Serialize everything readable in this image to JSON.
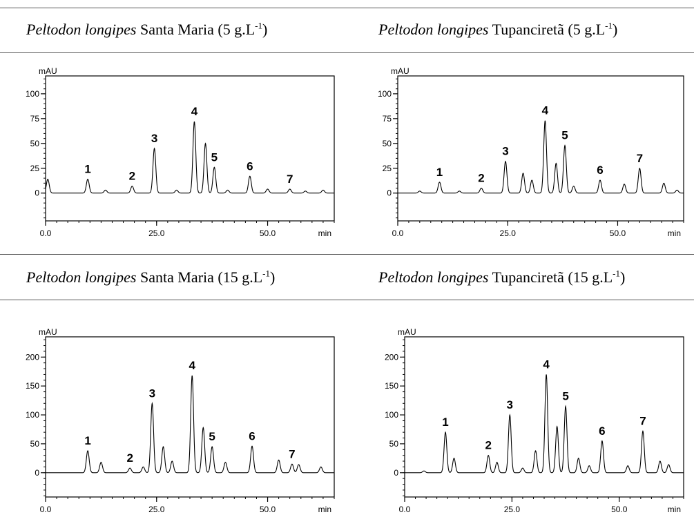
{
  "chart_data": [
    {
      "type": "line",
      "title": {
        "species": "Peltodon longipes",
        "place": "Santa Maria",
        "conc": "(5 g.L",
        "sup": "-1",
        "close": ")"
      },
      "xlabel": "min",
      "ylabel": "mAU",
      "xlim": [
        0,
        65
      ],
      "ylim": [
        -28,
        118
      ],
      "xticks": [
        {
          "value": 0,
          "label": "0.0"
        },
        {
          "value": 25,
          "label": "25.0"
        },
        {
          "value": 50,
          "label": "50.0"
        }
      ],
      "yticks": [
        {
          "value": 0,
          "label": "0"
        },
        {
          "value": 25,
          "label": "25"
        },
        {
          "value": 50,
          "label": "50"
        },
        {
          "value": 75,
          "label": "75"
        },
        {
          "value": 100,
          "label": "100"
        }
      ],
      "peaks": [
        {
          "label": "1",
          "x": 9.5,
          "y": 14
        },
        {
          "label": "2",
          "x": 19.5,
          "y": 7
        },
        {
          "label": "3",
          "x": 24.5,
          "y": 45
        },
        {
          "label": "4",
          "x": 33.5,
          "y": 72
        },
        {
          "label": "5",
          "x": 38.0,
          "y": 26
        },
        {
          "label": "6",
          "x": 46.0,
          "y": 17
        },
        {
          "label": "7",
          "x": 55.0,
          "y": 4
        }
      ],
      "minor_peaks": [
        {
          "x": 0.5,
          "y": 14
        },
        {
          "x": 13.5,
          "y": 3
        },
        {
          "x": 36.0,
          "y": 50
        },
        {
          "x": 29.5,
          "y": 3
        },
        {
          "x": 41.0,
          "y": 3
        },
        {
          "x": 50.0,
          "y": 4
        },
        {
          "x": 58.5,
          "y": 2
        },
        {
          "x": 62.5,
          "y": 3
        }
      ]
    },
    {
      "type": "line",
      "title": {
        "species": "Peltodon longipes",
        "place": "Tupanciretã",
        "conc": "(5 g.L",
        "sup": "-1",
        "close": ")"
      },
      "xlabel": "min",
      "ylabel": "mAU",
      "xlim": [
        0,
        65
      ],
      "ylim": [
        -28,
        118
      ],
      "xticks": [
        {
          "value": 0,
          "label": "0.0"
        },
        {
          "value": 25,
          "label": "25.0"
        },
        {
          "value": 50,
          "label": "50.0"
        }
      ],
      "yticks": [
        {
          "value": 0,
          "label": "0"
        },
        {
          "value": 25,
          "label": "25"
        },
        {
          "value": 50,
          "label": "50"
        },
        {
          "value": 75,
          "label": "75"
        },
        {
          "value": 100,
          "label": "100"
        }
      ],
      "peaks": [
        {
          "label": "1",
          "x": 9.5,
          "y": 11
        },
        {
          "label": "2",
          "x": 19.0,
          "y": 5
        },
        {
          "label": "3",
          "x": 24.5,
          "y": 32
        },
        {
          "label": "4",
          "x": 33.5,
          "y": 73
        },
        {
          "label": "5",
          "x": 38.0,
          "y": 48
        },
        {
          "label": "6",
          "x": 46.0,
          "y": 13
        },
        {
          "label": "7",
          "x": 55.0,
          "y": 25
        }
      ],
      "minor_peaks": [
        {
          "x": 28.5,
          "y": 20
        },
        {
          "x": 30.5,
          "y": 13
        },
        {
          "x": 36.0,
          "y": 30
        },
        {
          "x": 40.0,
          "y": 7
        },
        {
          "x": 51.5,
          "y": 9
        },
        {
          "x": 60.5,
          "y": 10
        },
        {
          "x": 63.5,
          "y": 3
        },
        {
          "x": 14.0,
          "y": 2
        },
        {
          "x": 5.0,
          "y": 2
        }
      ]
    },
    {
      "type": "line",
      "title": {
        "species": "Peltodon longipes",
        "place": "Santa Maria",
        "conc": "(15 g.L",
        "sup": "-1",
        "close": ")"
      },
      "xlabel": "min",
      "ylabel": "mAU",
      "xlim": [
        0,
        65
      ],
      "ylim": [
        -42,
        235
      ],
      "xticks": [
        {
          "value": 0,
          "label": "0.0"
        },
        {
          "value": 25,
          "label": "25.0"
        },
        {
          "value": 50,
          "label": "50.0"
        }
      ],
      "yticks": [
        {
          "value": 0,
          "label": "0"
        },
        {
          "value": 50,
          "label": "50"
        },
        {
          "value": 100,
          "label": "100"
        },
        {
          "value": 150,
          "label": "150"
        },
        {
          "value": 200,
          "label": "200"
        }
      ],
      "peaks": [
        {
          "label": "1",
          "x": 9.5,
          "y": 38
        },
        {
          "label": "2",
          "x": 19.0,
          "y": 8
        },
        {
          "label": "3",
          "x": 24.0,
          "y": 120
        },
        {
          "label": "4",
          "x": 33.0,
          "y": 168
        },
        {
          "label": "5",
          "x": 37.5,
          "y": 45
        },
        {
          "label": "6",
          "x": 46.5,
          "y": 46
        },
        {
          "label": "7",
          "x": 55.5,
          "y": 15
        }
      ],
      "minor_peaks": [
        {
          "x": 12.5,
          "y": 18
        },
        {
          "x": 22.0,
          "y": 10
        },
        {
          "x": 26.5,
          "y": 45
        },
        {
          "x": 28.5,
          "y": 20
        },
        {
          "x": 35.5,
          "y": 78
        },
        {
          "x": 40.5,
          "y": 18
        },
        {
          "x": 52.5,
          "y": 22
        },
        {
          "x": 57.0,
          "y": 14
        },
        {
          "x": 62.0,
          "y": 10
        }
      ]
    },
    {
      "type": "line",
      "title": {
        "species": "Peltodon longipes",
        "place": "Tupanciretã",
        "conc": "(15 g.L",
        "sup": "-1",
        "close": ")"
      },
      "xlabel": "min",
      "ylabel": "mAU",
      "xlim": [
        0,
        65
      ],
      "ylim": [
        -42,
        235
      ],
      "xticks": [
        {
          "value": 0,
          "label": "0.0"
        },
        {
          "value": 25,
          "label": "25.0"
        },
        {
          "value": 50,
          "label": "50.0"
        }
      ],
      "yticks": [
        {
          "value": 0,
          "label": "0"
        },
        {
          "value": 50,
          "label": "50"
        },
        {
          "value": 100,
          "label": "100"
        },
        {
          "value": 150,
          "label": "150"
        },
        {
          "value": 200,
          "label": "200"
        }
      ],
      "peaks": [
        {
          "label": "1",
          "x": 9.5,
          "y": 70
        },
        {
          "label": "2",
          "x": 19.5,
          "y": 30
        },
        {
          "label": "3",
          "x": 24.5,
          "y": 100
        },
        {
          "label": "4",
          "x": 33.0,
          "y": 170
        },
        {
          "label": "5",
          "x": 37.5,
          "y": 115
        },
        {
          "label": "6",
          "x": 46.0,
          "y": 55
        },
        {
          "label": "7",
          "x": 55.5,
          "y": 72
        }
      ],
      "minor_peaks": [
        {
          "x": 11.5,
          "y": 25
        },
        {
          "x": 21.5,
          "y": 18
        },
        {
          "x": 30.5,
          "y": 38
        },
        {
          "x": 35.5,
          "y": 80
        },
        {
          "x": 40.5,
          "y": 25
        },
        {
          "x": 43.0,
          "y": 12
        },
        {
          "x": 52.0,
          "y": 12
        },
        {
          "x": 59.5,
          "y": 20
        },
        {
          "x": 61.5,
          "y": 14
        },
        {
          "x": 27.5,
          "y": 8
        },
        {
          "x": 4.5,
          "y": 3
        }
      ]
    }
  ]
}
